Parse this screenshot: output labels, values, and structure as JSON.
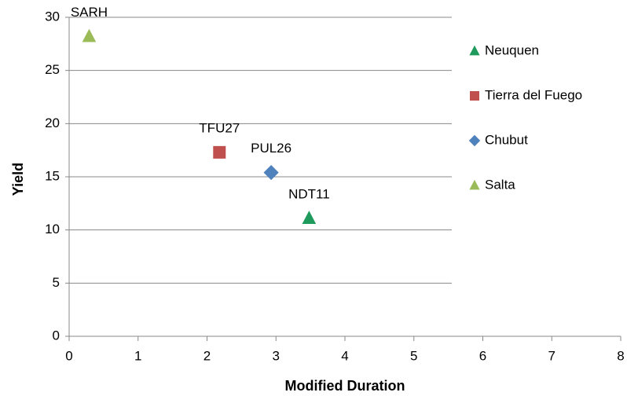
{
  "chart_data": {
    "type": "scatter",
    "x_label": "Modified Duration",
    "y_label": "Yield",
    "xlim": [
      0,
      8
    ],
    "xticks": [
      0,
      1,
      2,
      3,
      4,
      5,
      6,
      7,
      8
    ],
    "ylim": [
      0,
      30
    ],
    "yticks": [
      0,
      5,
      10,
      15,
      20,
      25,
      30
    ],
    "grid": true,
    "legend": "right",
    "series": [
      {
        "name": "Neuquen",
        "color": "#1e9a5c",
        "marker": "triangle",
        "x": [
          3.48
        ],
        "y": [
          11.1
        ],
        "labels": [
          "NDT11"
        ]
      },
      {
        "name": "Tierra del Fuego",
        "color": "#c0504d",
        "marker": "square",
        "x": [
          2.18
        ],
        "y": [
          17.3
        ],
        "labels": [
          "TFU27"
        ]
      },
      {
        "name": "Chubut",
        "color": "#4f81bd",
        "marker": "diamond",
        "x": [
          2.93
        ],
        "y": [
          15.4
        ],
        "labels": [
          "PUL26"
        ]
      },
      {
        "name": "Salta",
        "color": "#9bbb59",
        "marker": "triangle",
        "x": [
          0.29
        ],
        "y": [
          28.2
        ],
        "labels": [
          "SARH"
        ]
      }
    ]
  }
}
